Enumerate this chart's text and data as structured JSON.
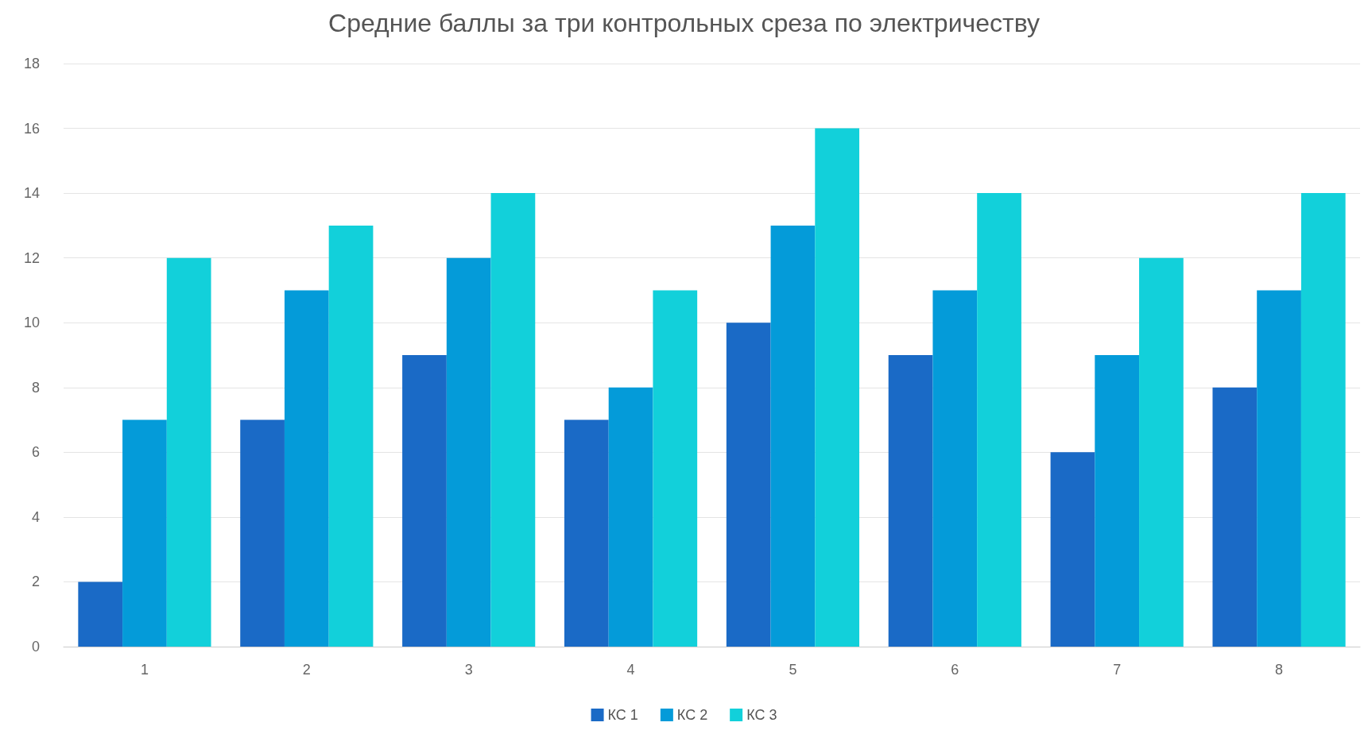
{
  "chart_data": {
    "type": "bar",
    "title": "Средние баллы за три контрольных среза по электричеству",
    "categories": [
      "1",
      "2",
      "3",
      "4",
      "5",
      "6",
      "7",
      "8"
    ],
    "series": [
      {
        "name": "КС 1",
        "color": "#1a6ac6",
        "values": [
          2,
          7,
          9,
          7,
          10,
          9,
          6,
          8
        ]
      },
      {
        "name": "КС 2",
        "color": "#049bd9",
        "values": [
          7,
          11,
          12,
          8,
          13,
          11,
          9,
          11
        ]
      },
      {
        "name": "КС 3",
        "color": "#12d0da",
        "values": [
          12,
          13,
          14,
          11,
          16,
          14,
          12,
          14
        ]
      }
    ],
    "ylim": [
      0,
      18
    ],
    "yticks": [
      0,
      2,
      4,
      6,
      8,
      10,
      12,
      14,
      16,
      18
    ],
    "grid": "y",
    "legend": "bottom"
  }
}
